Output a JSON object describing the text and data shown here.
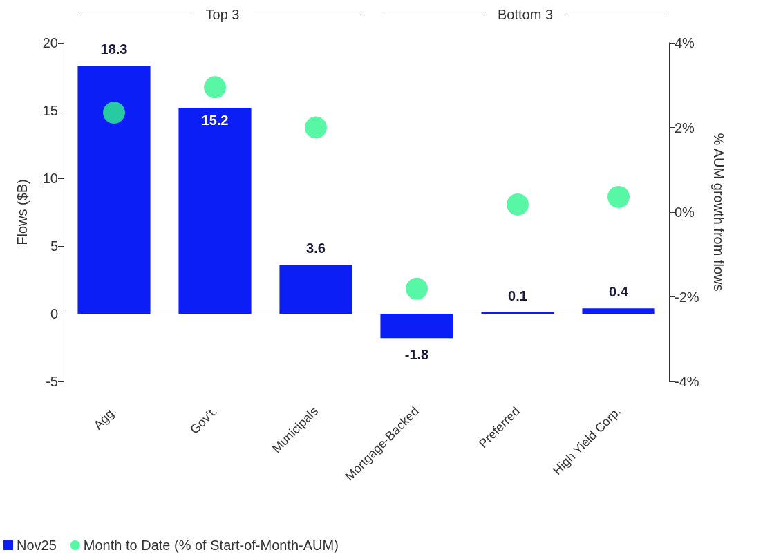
{
  "chart_data": {
    "type": "bar",
    "categories": [
      "Agg.",
      "Gov't.",
      "Municipals",
      "Mortgage-Backed",
      "Preferred",
      "High Yield Corp."
    ],
    "ylabel": "Flows ($B)",
    "y2label": "% AUM growth from flows",
    "series": [
      {
        "name": "Nov25",
        "color": "#0a1ef5",
        "values": [
          18.3,
          15.2,
          3.6,
          -1.8,
          0.1,
          0.4
        ],
        "value_labels": [
          "18.3",
          "15.2",
          "3.6",
          "-1.8",
          "0.1",
          "0.4"
        ]
      },
      {
        "name": "Month to Date (% of Start-of-Month-AUM)",
        "type": "scatter",
        "axis": "y2",
        "marker": "circle",
        "color": "#2ef58f",
        "values": [
          2.35,
          2.95,
          2.0,
          -1.81,
          0.18,
          0.36
        ]
      }
    ],
    "ylim": [
      -5,
      20
    ],
    "yticks": [
      -5,
      0,
      5,
      10,
      15,
      20
    ],
    "y2lim": [
      -4,
      4
    ],
    "y2ticks": [
      {
        "value": -4,
        "label": "-4%"
      },
      {
        "value": -2,
        "label": "-2%"
      },
      {
        "value": 0,
        "label": "0%"
      },
      {
        "value": 2,
        "label": "2%"
      },
      {
        "value": 4,
        "label": "4%"
      }
    ],
    "annotations": [
      "Top 3",
      "Bottom 3"
    ],
    "legend": "bottom left"
  }
}
